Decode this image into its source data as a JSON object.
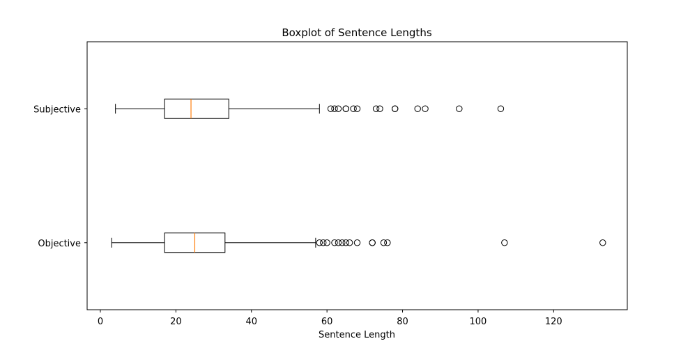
{
  "chart_data": {
    "type": "boxplot",
    "orientation": "horizontal",
    "title": "Boxplot of Sentence Lengths",
    "xlabel": "Sentence Length",
    "ylabel": "",
    "xlim": [
      -3.5,
      139.5
    ],
    "xticks": [
      0,
      20,
      40,
      60,
      80,
      100,
      120
    ],
    "grid": false,
    "legend": "none",
    "colors": {
      "box": "#000000",
      "median": "#ff7f0e",
      "outlier": "#000000"
    },
    "categories": [
      "Objective",
      "Subjective"
    ],
    "series": [
      {
        "category": "Objective",
        "whisker_low": 3,
        "q1": 17,
        "median": 25,
        "q3": 33,
        "whisker_high": 57,
        "outliers": [
          58,
          59,
          60,
          62,
          63,
          64,
          65,
          66,
          68,
          72,
          72,
          75,
          76,
          107,
          133
        ]
      },
      {
        "category": "Subjective",
        "whisker_low": 4,
        "q1": 17,
        "median": 24,
        "q3": 34,
        "whisker_high": 58,
        "outliers": [
          61,
          62,
          63,
          65,
          65,
          67,
          68,
          73,
          74,
          78,
          78,
          84,
          86,
          95,
          106
        ]
      }
    ]
  }
}
